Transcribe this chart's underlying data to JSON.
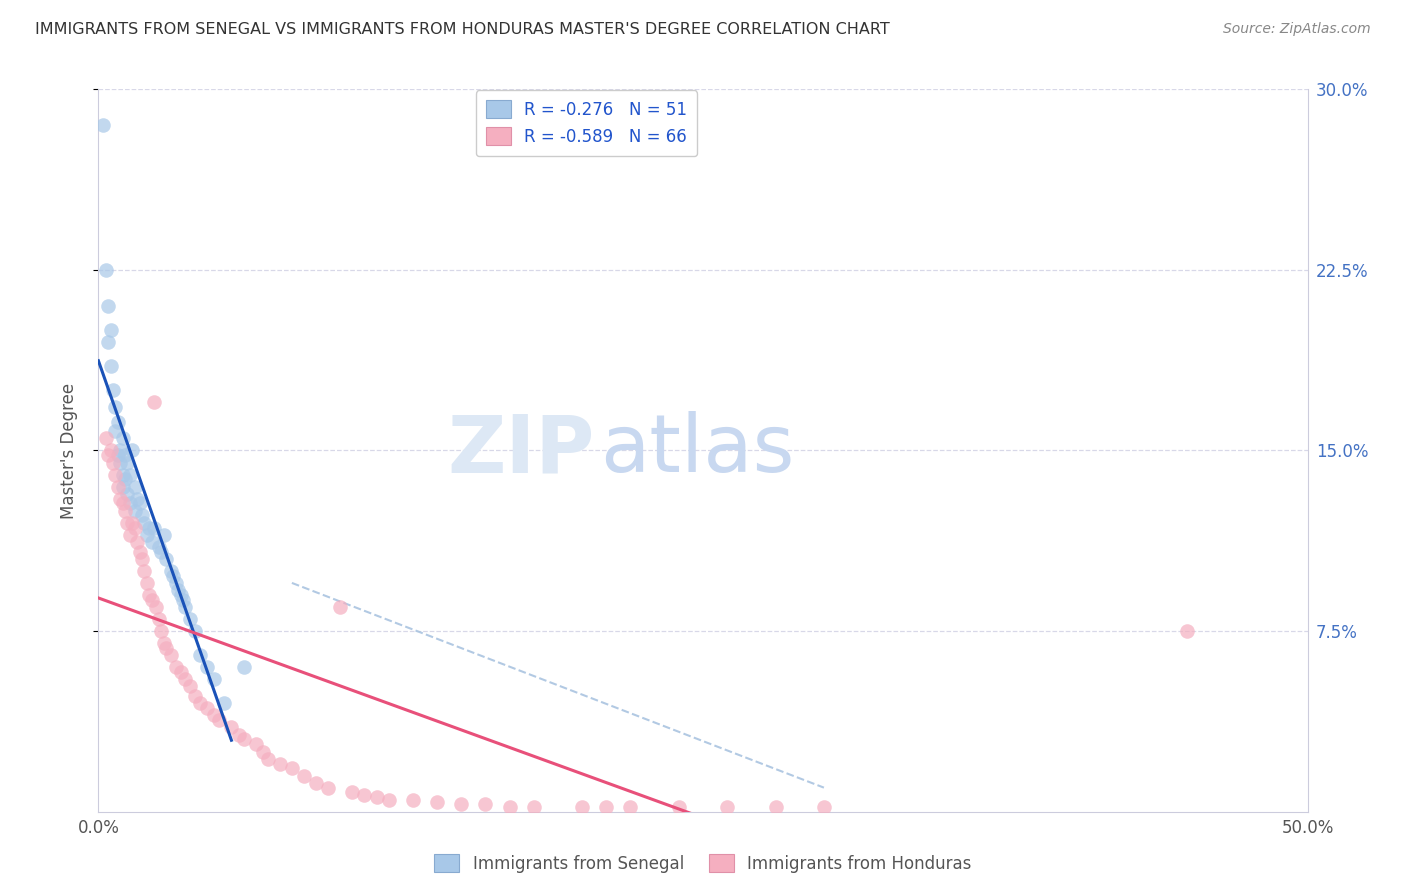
{
  "title": "IMMIGRANTS FROM SENEGAL VS IMMIGRANTS FROM HONDURAS MASTER'S DEGREE CORRELATION CHART",
  "source": "Source: ZipAtlas.com",
  "ylabel_left": "Master's Degree",
  "xlim": [
    0.0,
    0.5
  ],
  "ylim": [
    0.0,
    0.3
  ],
  "ytick_right_vals": [
    0.075,
    0.15,
    0.225,
    0.3
  ],
  "ytick_right_labels": [
    "7.5%",
    "15.0%",
    "22.5%",
    "30.0%"
  ],
  "legend_text1": "R = -0.276   N = 51",
  "legend_text2": "R = -0.589   N = 66",
  "senegal_color": "#a8c8e8",
  "honduras_color": "#f5afc0",
  "senegal_line_color": "#1a52b8",
  "honduras_line_color": "#e8507a",
  "dashed_line_color": "#aac4e0",
  "background_color": "#ffffff",
  "grid_color": "#d8d8e8",
  "spine_color": "#ccccdd",
  "right_axis_color": "#4472c4",
  "title_color": "#333333",
  "source_color": "#888888",
  "legend_text_color": "#2255cc",
  "watermark_zip_color": "#dde8f5",
  "watermark_atlas_color": "#c8d8f0",
  "senegal_x": [
    0.002,
    0.003,
    0.004,
    0.004,
    0.005,
    0.005,
    0.006,
    0.007,
    0.007,
    0.008,
    0.008,
    0.009,
    0.009,
    0.01,
    0.01,
    0.01,
    0.011,
    0.011,
    0.012,
    0.012,
    0.013,
    0.013,
    0.014,
    0.015,
    0.015,
    0.016,
    0.017,
    0.018,
    0.019,
    0.02,
    0.021,
    0.022,
    0.023,
    0.025,
    0.026,
    0.027,
    0.028,
    0.03,
    0.031,
    0.032,
    0.033,
    0.034,
    0.035,
    0.036,
    0.038,
    0.04,
    0.042,
    0.045,
    0.048,
    0.052,
    0.06
  ],
  "senegal_y": [
    0.285,
    0.225,
    0.21,
    0.195,
    0.2,
    0.185,
    0.175,
    0.168,
    0.158,
    0.148,
    0.162,
    0.145,
    0.15,
    0.155,
    0.14,
    0.135,
    0.148,
    0.138,
    0.145,
    0.132,
    0.128,
    0.14,
    0.15,
    0.135,
    0.125,
    0.13,
    0.128,
    0.123,
    0.12,
    0.115,
    0.118,
    0.112,
    0.118,
    0.11,
    0.108,
    0.115,
    0.105,
    0.1,
    0.098,
    0.095,
    0.092,
    0.09,
    0.088,
    0.085,
    0.08,
    0.075,
    0.065,
    0.06,
    0.055,
    0.045,
    0.06
  ],
  "honduras_x": [
    0.003,
    0.004,
    0.005,
    0.006,
    0.007,
    0.008,
    0.009,
    0.01,
    0.011,
    0.012,
    0.013,
    0.014,
    0.015,
    0.016,
    0.017,
    0.018,
    0.019,
    0.02,
    0.021,
    0.022,
    0.023,
    0.024,
    0.025,
    0.026,
    0.027,
    0.028,
    0.03,
    0.032,
    0.034,
    0.036,
    0.038,
    0.04,
    0.042,
    0.045,
    0.048,
    0.05,
    0.055,
    0.058,
    0.06,
    0.065,
    0.068,
    0.07,
    0.075,
    0.08,
    0.085,
    0.09,
    0.095,
    0.1,
    0.105,
    0.11,
    0.115,
    0.12,
    0.13,
    0.14,
    0.15,
    0.16,
    0.17,
    0.18,
    0.2,
    0.21,
    0.22,
    0.24,
    0.26,
    0.28,
    0.3,
    0.45
  ],
  "honduras_y": [
    0.155,
    0.148,
    0.15,
    0.145,
    0.14,
    0.135,
    0.13,
    0.128,
    0.125,
    0.12,
    0.115,
    0.12,
    0.118,
    0.112,
    0.108,
    0.105,
    0.1,
    0.095,
    0.09,
    0.088,
    0.17,
    0.085,
    0.08,
    0.075,
    0.07,
    0.068,
    0.065,
    0.06,
    0.058,
    0.055,
    0.052,
    0.048,
    0.045,
    0.043,
    0.04,
    0.038,
    0.035,
    0.032,
    0.03,
    0.028,
    0.025,
    0.022,
    0.02,
    0.018,
    0.015,
    0.012,
    0.01,
    0.085,
    0.008,
    0.007,
    0.006,
    0.005,
    0.005,
    0.004,
    0.003,
    0.003,
    0.002,
    0.002,
    0.002,
    0.002,
    0.002,
    0.002,
    0.002,
    0.002,
    0.002,
    0.075
  ]
}
